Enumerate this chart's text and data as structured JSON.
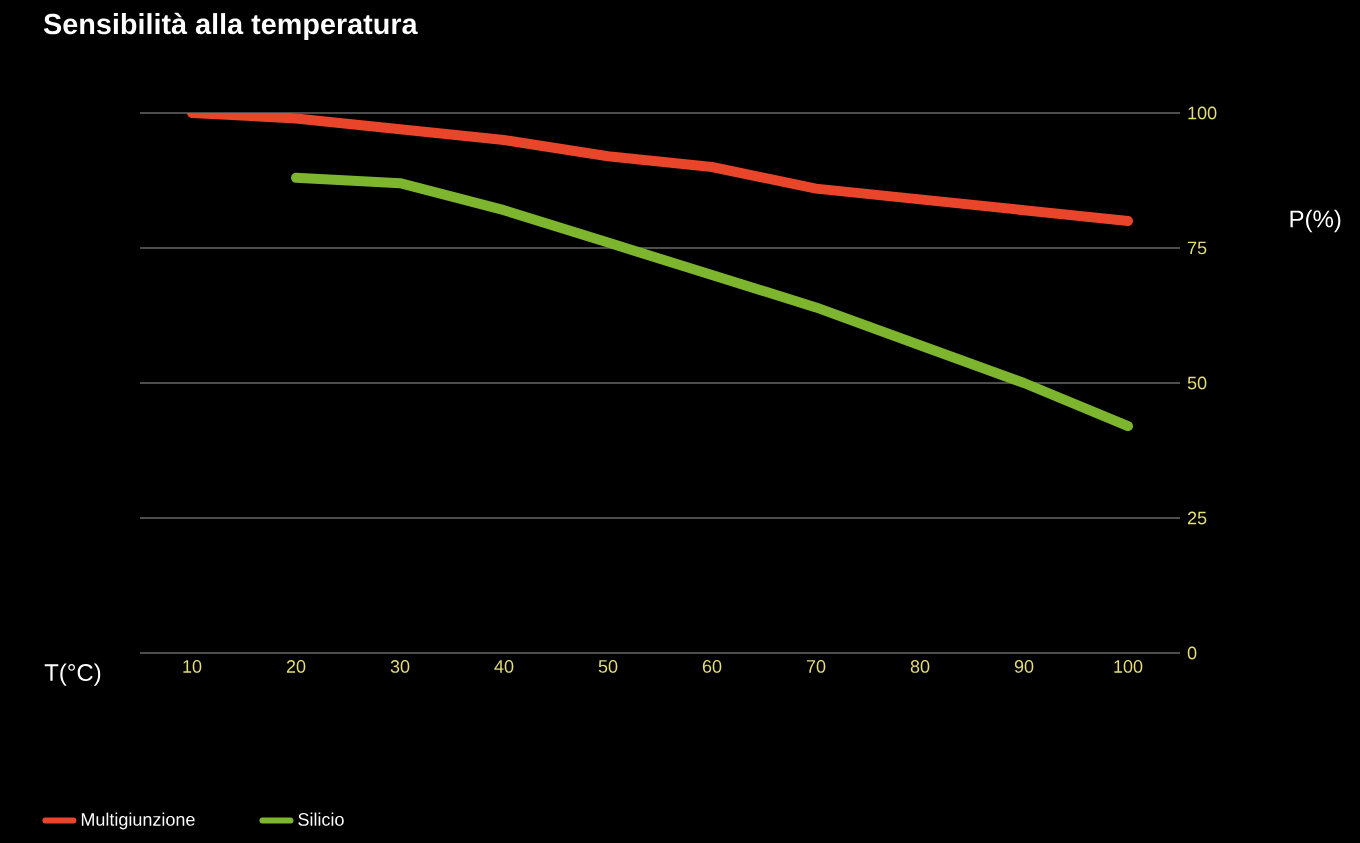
{
  "chart_data": {
    "type": "line",
    "title": "Sensibilità alla temperatura",
    "xlabel": "T(°C)",
    "ylabel": "P(%)",
    "x": [
      10,
      20,
      30,
      40,
      50,
      60,
      70,
      80,
      90,
      100
    ],
    "series": [
      {
        "name": "Multigiunzione",
        "color": "#e8452a",
        "values": [
          100,
          99,
          97,
          95,
          92,
          90,
          86,
          84,
          82,
          80
        ]
      },
      {
        "name": "Silicio",
        "color": "#7db52f",
        "values": [
          null,
          88,
          87,
          82,
          76,
          70,
          64,
          57,
          50,
          42
        ]
      }
    ],
    "xlim": [
      5,
      105
    ],
    "xticks": [
      10,
      20,
      30,
      40,
      50,
      60,
      70,
      80,
      90,
      100
    ],
    "ylim": [
      0,
      100
    ],
    "yticks": [
      0,
      25,
      50,
      75,
      100
    ],
    "grid": "y",
    "legend": "bottom left",
    "marker": "none",
    "line_style": "solid"
  }
}
